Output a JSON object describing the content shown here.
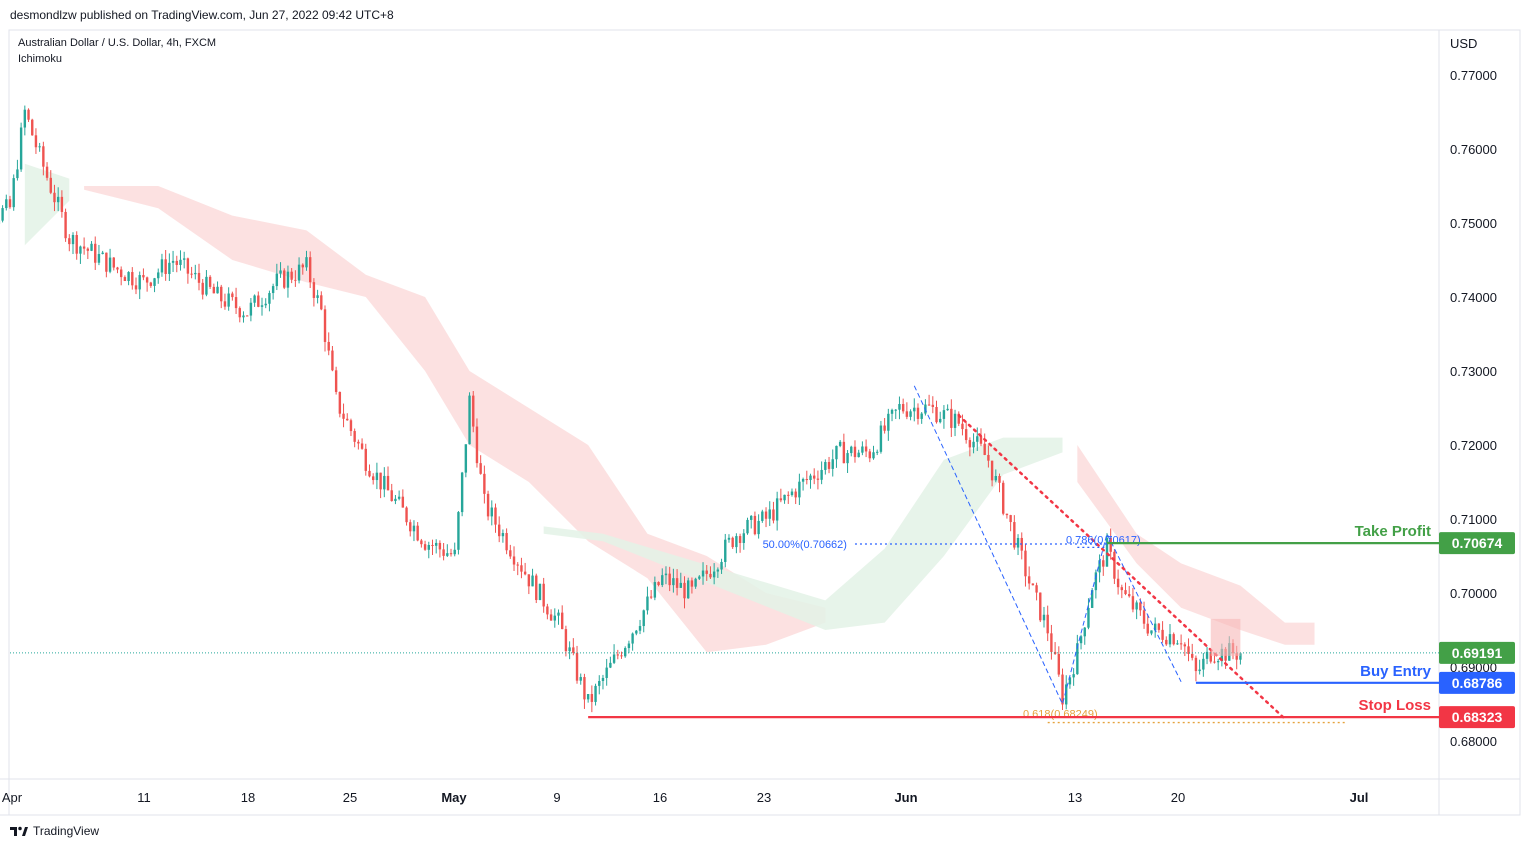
{
  "header": {
    "publish_line": "desmondlzw published on TradingView.com, Jun 27, 2022 09:42 UTC+8"
  },
  "legend": {
    "symbol": "Australian Dollar / U.S. Dollar, 4h, FXCM",
    "indicator": "Ichimoku"
  },
  "footer": {
    "brand": "TradingView"
  },
  "colors": {
    "up": "#26a69a",
    "down": "#ef5350",
    "green_line": "#43a047",
    "blue_line": "#2962ff",
    "red_line": "#f23645",
    "fib_gold": "#e6a23c",
    "cloud_red": "#fcdcdc",
    "cloud_green": "#e3f2e6"
  },
  "chart_data": {
    "type": "candlestick",
    "currency": "USD",
    "y_ticks": [
      "0.77000",
      "0.76000",
      "0.75000",
      "0.74000",
      "0.73000",
      "0.72000",
      "0.71000",
      "0.70000",
      "0.69000",
      "0.68000"
    ],
    "ylim": [
      0.676,
      0.7795
    ],
    "x_ticks": [
      "Apr",
      "11",
      "18",
      "25",
      "May",
      "9",
      "16",
      "23",
      "Jun",
      "13",
      "20",
      "Jul"
    ],
    "xlim": [
      "2022-04-04",
      "2022-07-04"
    ],
    "price_path": [
      [
        "2022-04-01",
        0.749
      ],
      [
        "2022-04-04",
        0.752
      ],
      [
        "2022-04-05",
        0.765
      ],
      [
        "2022-04-06",
        0.759
      ],
      [
        "2022-04-08",
        0.748
      ],
      [
        "2022-04-11",
        0.744
      ],
      [
        "2022-04-13",
        0.742
      ],
      [
        "2022-04-15",
        0.745
      ],
      [
        "2022-04-18",
        0.74
      ],
      [
        "2022-04-20",
        0.738
      ],
      [
        "2022-04-22",
        0.742
      ],
      [
        "2022-04-24",
        0.744
      ],
      [
        "2022-04-25",
        0.738
      ],
      [
        "2022-04-26",
        0.726
      ],
      [
        "2022-04-28",
        0.718
      ],
      [
        "2022-04-29",
        0.715
      ],
      [
        "2022-05-02",
        0.707
      ],
      [
        "2022-05-04",
        0.705
      ],
      [
        "2022-05-05",
        0.726
      ],
      [
        "2022-05-06",
        0.712
      ],
      [
        "2022-05-09",
        0.702
      ],
      [
        "2022-05-11",
        0.696
      ],
      [
        "2022-05-13",
        0.685
      ],
      [
        "2022-05-16",
        0.695
      ],
      [
        "2022-05-18",
        0.702
      ],
      [
        "2022-05-20",
        0.7
      ],
      [
        "2022-05-23",
        0.708
      ],
      [
        "2022-05-25",
        0.71
      ],
      [
        "2022-05-27",
        0.714
      ],
      [
        "2022-05-30",
        0.719
      ],
      [
        "2022-06-01",
        0.719
      ],
      [
        "2022-06-03",
        0.725
      ],
      [
        "2022-06-05",
        0.725
      ],
      [
        "2022-06-07",
        0.723
      ],
      [
        "2022-06-09",
        0.718
      ],
      [
        "2022-06-10",
        0.712
      ],
      [
        "2022-06-12",
        0.7
      ],
      [
        "2022-06-13",
        0.695
      ],
      [
        "2022-06-14",
        0.686
      ],
      [
        "2022-06-15",
        0.692
      ],
      [
        "2022-06-16",
        0.701
      ],
      [
        "2022-06-17",
        0.706
      ],
      [
        "2022-06-18",
        0.7
      ],
      [
        "2022-06-20",
        0.695
      ],
      [
        "2022-06-22",
        0.694
      ],
      [
        "2022-06-23",
        0.689
      ],
      [
        "2022-06-24",
        0.692
      ],
      [
        "2022-06-26",
        0.6919
      ]
    ],
    "ichimoku_cloud": {
      "red": [
        [
          "2022-04-09",
          0.755,
          0.7545
        ],
        [
          "2022-04-14",
          0.755,
          0.752
        ],
        [
          "2022-04-19",
          0.751,
          0.745
        ],
        [
          "2022-04-24",
          0.749,
          0.742
        ],
        [
          "2022-04-28",
          0.743,
          0.74
        ],
        [
          "2022-05-02",
          0.74,
          0.73
        ],
        [
          "2022-05-05",
          0.73,
          0.72
        ],
        [
          "2022-05-09",
          0.725,
          0.715
        ],
        [
          "2022-05-13",
          0.72,
          0.707
        ],
        [
          "2022-05-17",
          0.708,
          0.702
        ],
        [
          "2022-05-21",
          0.705,
          0.692
        ],
        [
          "2022-05-25",
          0.7,
          0.693
        ],
        [
          "2022-05-29",
          0.698,
          0.696
        ],
        [
          "2022-06-15",
          0.72,
          0.715
        ],
        [
          "2022-06-19",
          0.708,
          0.704
        ],
        [
          "2022-06-22",
          0.704,
          0.698
        ],
        [
          "2022-06-26",
          0.701,
          0.695
        ],
        [
          "2022-06-29",
          0.696,
          0.693
        ],
        [
          "2022-07-01",
          0.696,
          0.693
        ]
      ],
      "green": [
        [
          "2022-04-05",
          0.758,
          0.747
        ],
        [
          "2022-04-08",
          0.756,
          0.753
        ],
        [
          "2022-05-10",
          0.709,
          0.708
        ],
        [
          "2022-05-14",
          0.708,
          0.707
        ],
        [
          "2022-05-29",
          0.699,
          0.695
        ],
        [
          "2022-06-02",
          0.706,
          0.696
        ],
        [
          "2022-06-06",
          0.718,
          0.705
        ],
        [
          "2022-06-10",
          0.721,
          0.716
        ],
        [
          "2022-06-14",
          0.721,
          0.719
        ]
      ]
    },
    "levels": [
      {
        "label": "Take Profit",
        "price": "0.70674",
        "value": 0.70674,
        "start": "2022-06-17",
        "color": "#43a047"
      },
      {
        "label": "Buy Entry",
        "price": "0.68786",
        "value": 0.68786,
        "start": "2022-06-23",
        "color": "#2962ff"
      },
      {
        "label": "Stop Loss",
        "price": "0.68323",
        "value": 0.68323,
        "start": "2022-05-13",
        "color": "#f23645"
      }
    ],
    "current_price": {
      "price": "0.69191",
      "value": 0.69191
    },
    "fib_labels": [
      {
        "text": "50.00%(0.70662)",
        "value": 0.70662,
        "date": "2022-05-31",
        "end": "2022-06-17",
        "color": "#2962ff"
      },
      {
        "text": "0.786(0.70617)",
        "value": 0.70617,
        "date": "2022-06-15",
        "end": "2022-06-17",
        "color": "#2962ff"
      },
      {
        "text": "0.618(0.68249)",
        "value": 0.68249,
        "date": "2022-06-13",
        "end": "2022-07-03",
        "color": "#e6a23c"
      }
    ],
    "trendline": {
      "from": [
        "2022-06-07",
        0.724
      ],
      "to": [
        "2022-06-29",
        0.683
      ]
    },
    "harmonic": [
      [
        "2022-06-04",
        0.728
      ],
      [
        "2022-06-14",
        0.685
      ],
      [
        "2022-06-17",
        0.708
      ],
      [
        "2022-06-22",
        0.688
      ]
    ],
    "highlight_box": {
      "from": [
        "2022-06-24",
        0.6965
      ],
      "to": [
        "2022-06-26",
        0.6915
      ]
    }
  }
}
